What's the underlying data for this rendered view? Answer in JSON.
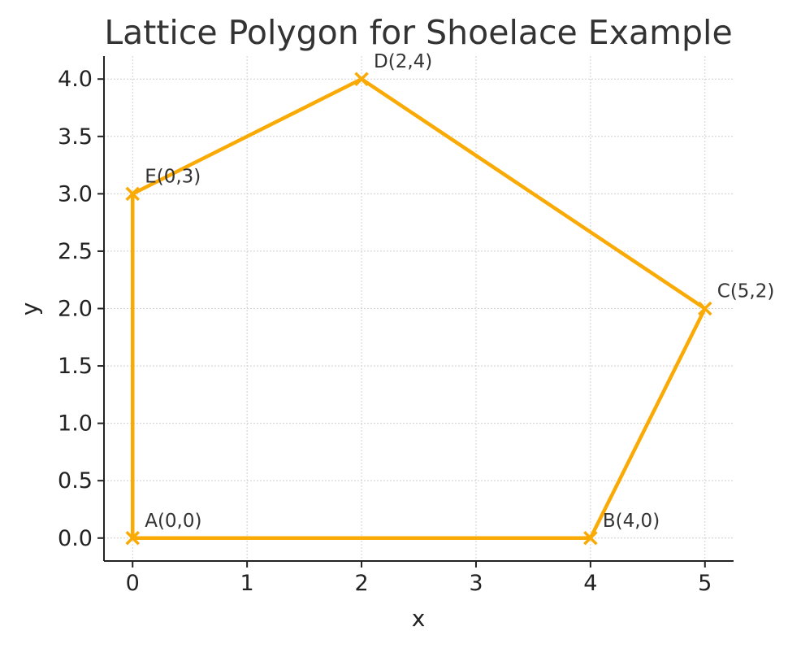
{
  "chart_data": {
    "type": "line",
    "title": "Lattice Polygon for Shoelace Example",
    "xlabel": "x",
    "ylabel": "y",
    "xlim": [
      -0.25,
      5.25
    ],
    "ylim": [
      -0.2,
      4.2
    ],
    "xticks": [
      0,
      1,
      2,
      3,
      4,
      5
    ],
    "xtick_labels": [
      "0",
      "1",
      "2",
      "3",
      "4",
      "5"
    ],
    "yticks": [
      0,
      0.5,
      1,
      1.5,
      2,
      2.5,
      3,
      3.5,
      4
    ],
    "ytick_labels": [
      "0.0",
      "0.5",
      "1.0",
      "1.5",
      "2.0",
      "2.5",
      "3.0",
      "3.5",
      "4.0"
    ],
    "grid": true,
    "closed": true,
    "marker": "x",
    "color": "#FAAA05",
    "points": [
      {
        "label": "A(0,0)",
        "x": 0,
        "y": 0
      },
      {
        "label": "B(4,0)",
        "x": 4,
        "y": 0
      },
      {
        "label": "C(5,2)",
        "x": 5,
        "y": 2
      },
      {
        "label": "D(2,4)",
        "x": 2,
        "y": 4
      },
      {
        "label": "E(0,3)",
        "x": 0,
        "y": 3
      }
    ]
  }
}
